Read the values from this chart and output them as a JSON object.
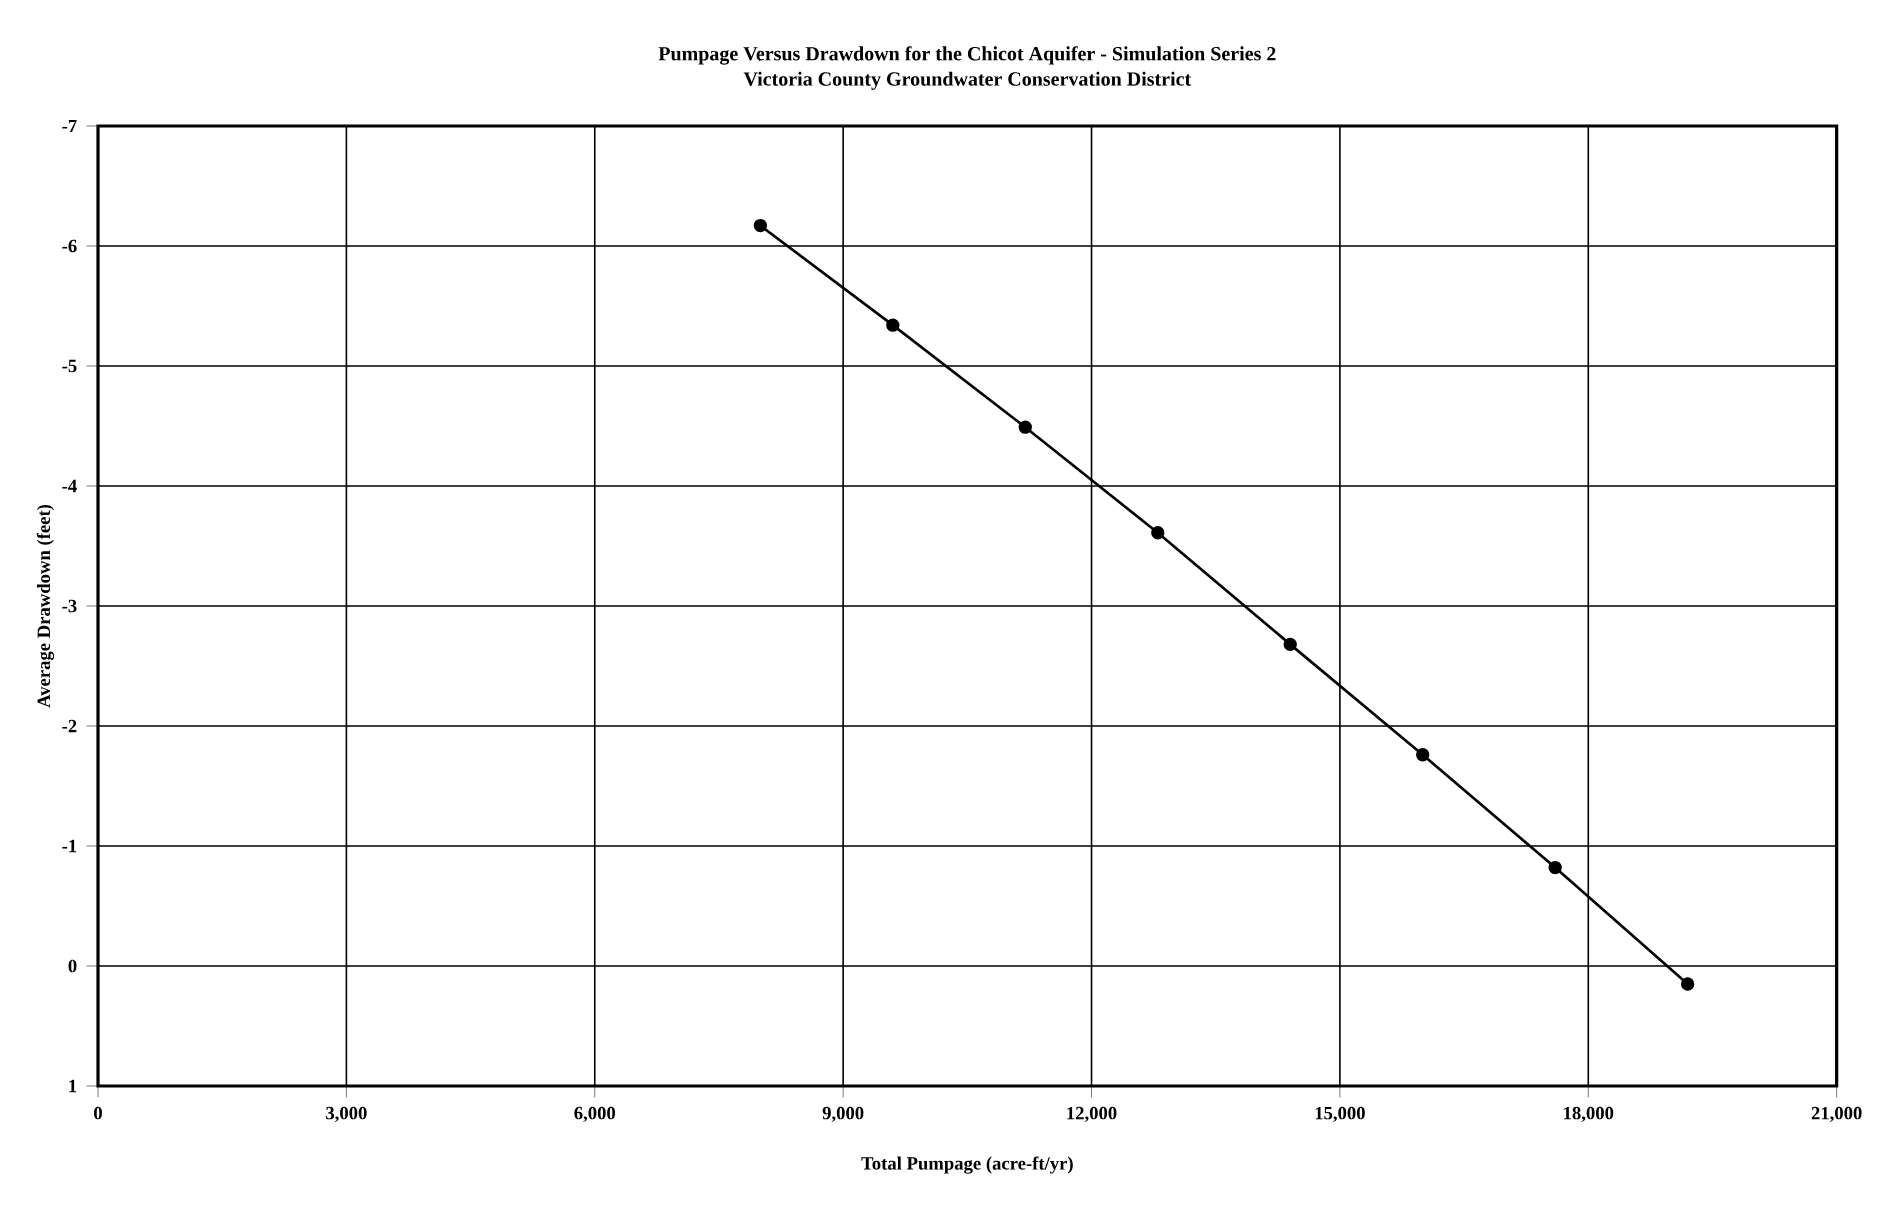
{
  "chart_data": {
    "type": "line",
    "title": "Pumpage Versus Drawdown for the Chicot Aquifer - Simulation Series 2",
    "subtitle": "Victoria County Groundwater Conservation District",
    "xlabel": "Total Pumpage (acre-ft/yr)",
    "ylabel": "Average Drawdown (feet)",
    "x": [
      8000,
      9600,
      11200,
      12800,
      14400,
      16000,
      17600,
      19200
    ],
    "series": [
      {
        "color": "#000000",
        "values": [
          -6.17,
          -5.34,
          -4.49,
          -3.61,
          -2.68,
          -1.76,
          -0.82,
          0.15
        ]
      }
    ],
    "xlim": [
      0,
      21000
    ],
    "xticks": [
      0,
      {
        "value": 3000,
        "label": "3,000"
      },
      {
        "value": 6000,
        "label": "6,000"
      },
      {
        "value": 9000,
        "label": "9,000"
      },
      {
        "value": 12000,
        "label": "12,000"
      },
      {
        "value": 15000,
        "label": "15,000"
      },
      {
        "value": 18000,
        "label": "18,000"
      },
      {
        "value": 21000,
        "label": "21,000"
      }
    ],
    "ylim": [
      1,
      -7
    ],
    "yticks": [
      -7,
      -6,
      -5,
      -4,
      -3,
      -2,
      -1,
      0,
      1
    ],
    "grid": true,
    "legend": false,
    "marker": "circle",
    "line_style": "solid"
  }
}
